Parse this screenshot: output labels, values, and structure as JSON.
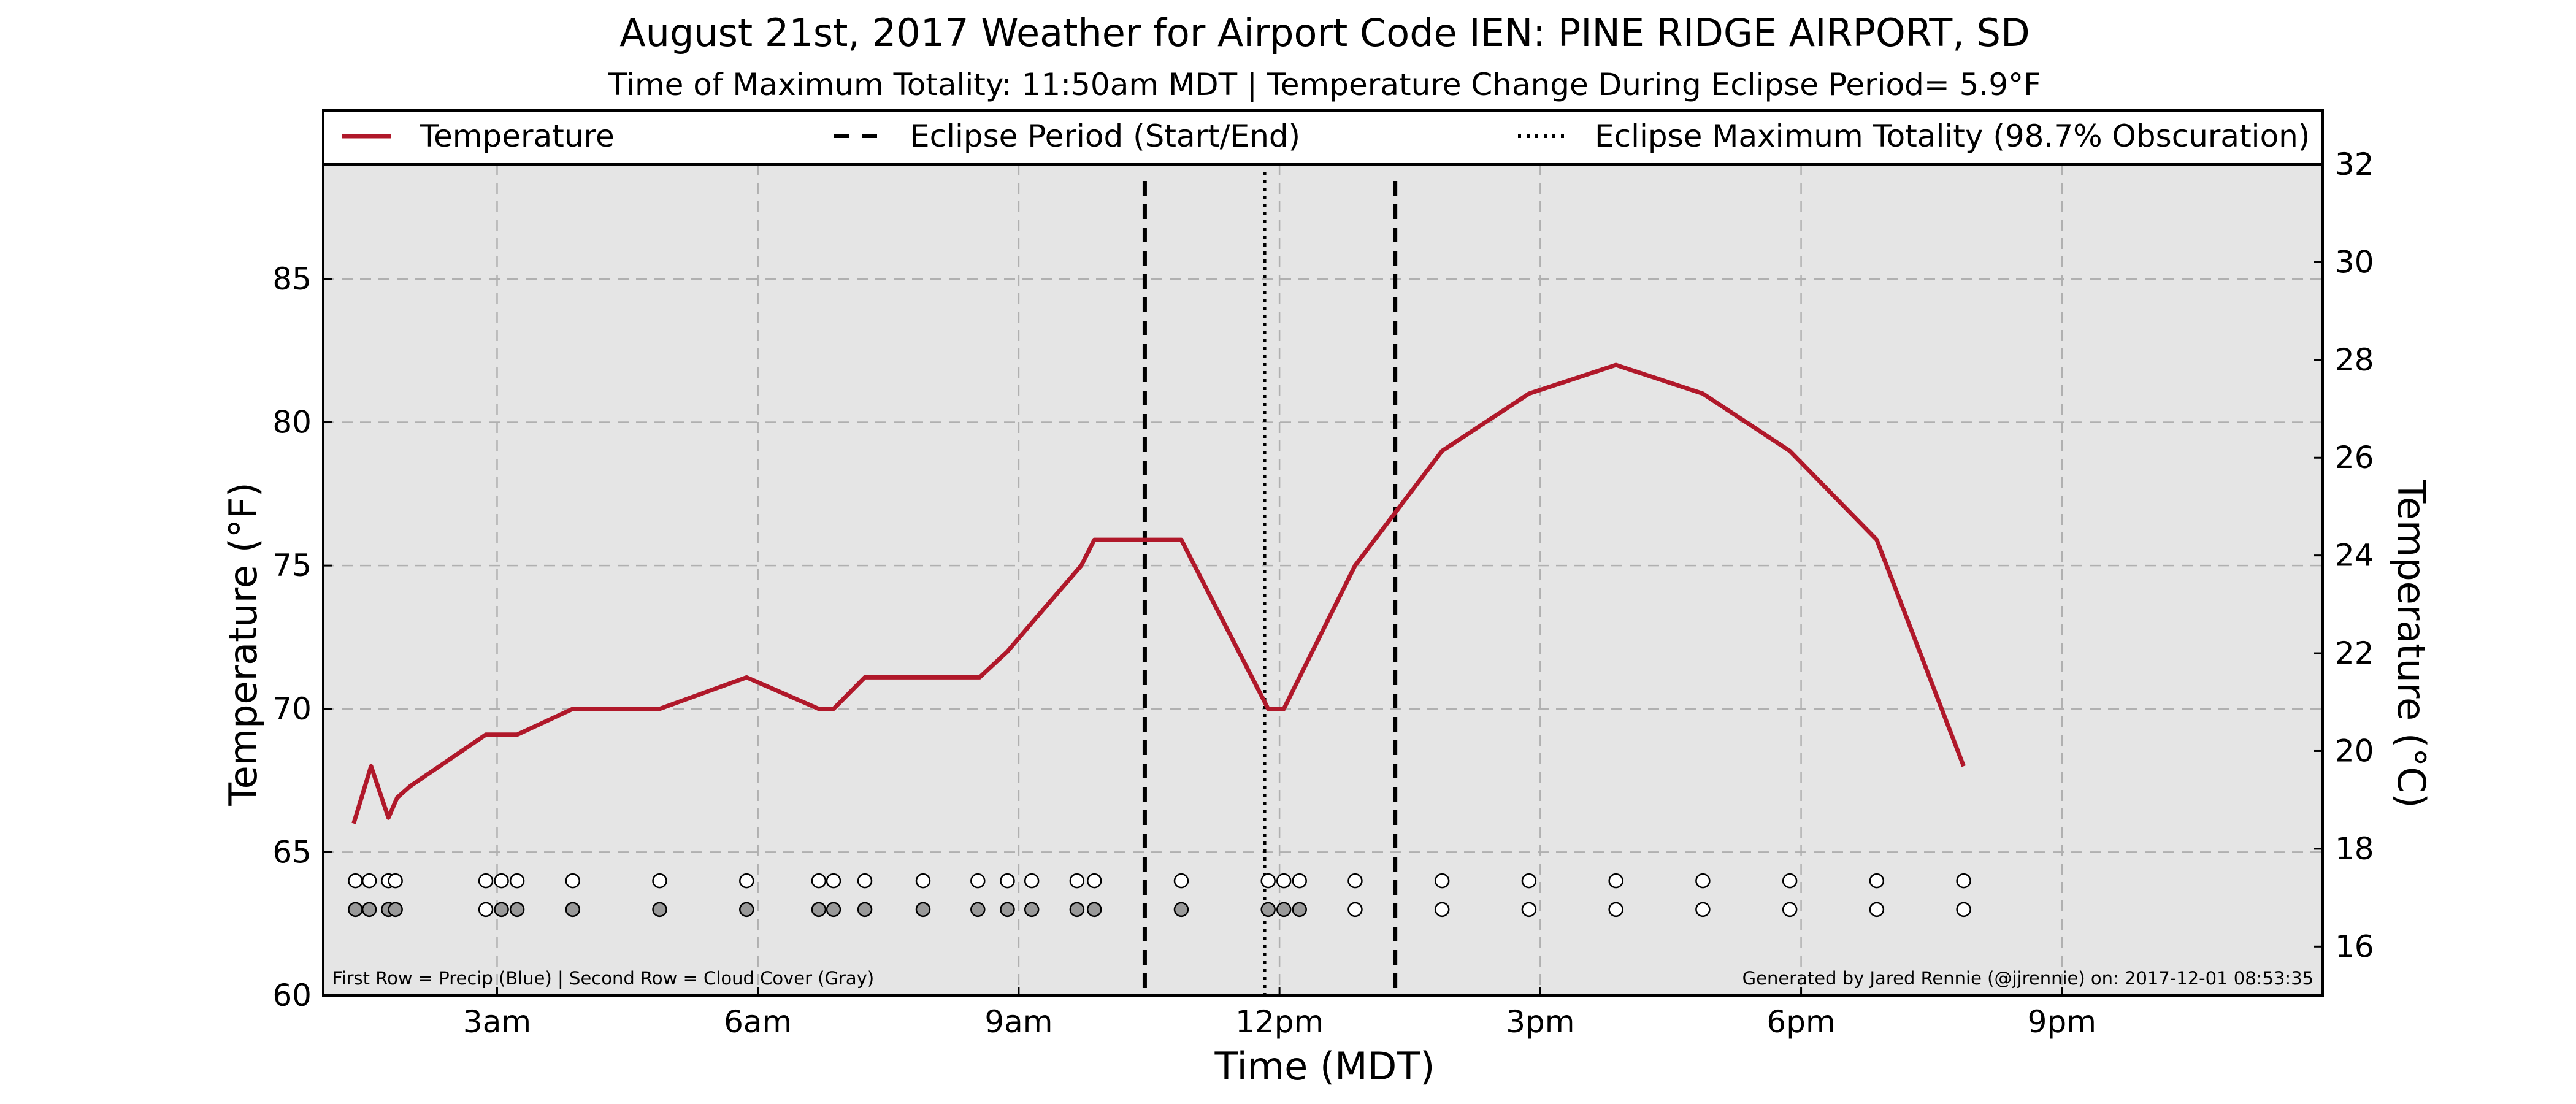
{
  "chart_data": {
    "type": "line",
    "title": "August 21st, 2017 Weather for Airport Code IEN: PINE RIDGE AIRPORT, SD",
    "subtitle": "Time of Maximum Totality: 11:50am MDT | Temperature Change During Eclipse Period= 5.9°F",
    "xlabel": "Time (MDT)",
    "ylabel": "Temperature (°F)",
    "ylabel_right": "Temperature (°C)",
    "xlim": [
      1.0,
      24.0
    ],
    "ylim": [
      60,
      89
    ],
    "ylim_right": [
      15.0,
      32.0
    ],
    "x_ticks": [
      3,
      6,
      9,
      12,
      15,
      18,
      21
    ],
    "x_tick_labels": [
      "3am",
      "6am",
      "9am",
      "12pm",
      "3pm",
      "6pm",
      "9pm"
    ],
    "y_ticks": [
      60,
      65,
      70,
      75,
      80,
      85
    ],
    "y_ticks_right": [
      16,
      18,
      20,
      22,
      24,
      26,
      28,
      30,
      32
    ],
    "grid": true,
    "legend_position": "top",
    "legend": [
      {
        "label": "Temperature",
        "style": "solid"
      },
      {
        "label": "Eclipse Period (Start/End)",
        "style": "dashed"
      },
      {
        "label": "Eclipse Maximum Totality (98.7% Obscuration)",
        "style": "dotted"
      }
    ],
    "series": [
      {
        "name": "Temperature",
        "color": "#b0182a",
        "points": [
          [
            1.35,
            66.0
          ],
          [
            1.55,
            68.0
          ],
          [
            1.75,
            66.2
          ],
          [
            1.85,
            66.9
          ],
          [
            2.0,
            67.3
          ],
          [
            2.87,
            69.1
          ],
          [
            3.23,
            69.1
          ],
          [
            3.87,
            70.0
          ],
          [
            4.87,
            70.0
          ],
          [
            5.87,
            71.1
          ],
          [
            6.7,
            70.0
          ],
          [
            6.87,
            70.0
          ],
          [
            7.23,
            71.1
          ],
          [
            8.55,
            71.1
          ],
          [
            8.87,
            72.0
          ],
          [
            9.15,
            73.0
          ],
          [
            9.72,
            75.0
          ],
          [
            9.87,
            75.9
          ],
          [
            10.87,
            75.9
          ],
          [
            11.87,
            70.0
          ],
          [
            12.05,
            70.0
          ],
          [
            12.23,
            71.1
          ],
          [
            12.87,
            75.0
          ],
          [
            13.87,
            79.0
          ],
          [
            14.87,
            81.0
          ],
          [
            15.87,
            82.0
          ],
          [
            16.87,
            81.0
          ],
          [
            17.87,
            79.0
          ],
          [
            18.87,
            75.9
          ],
          [
            19.87,
            68.0
          ]
        ]
      }
    ],
    "eclipse_start": 10.45,
    "eclipse_end": 13.33,
    "max_totality": 11.83,
    "precip_row": {
      "y": 64,
      "color": "#ffffff",
      "x": [
        1.37,
        1.53,
        1.75,
        1.83,
        2.87,
        3.05,
        3.23,
        3.87,
        4.87,
        5.87,
        6.7,
        6.87,
        7.23,
        7.9,
        8.53,
        8.87,
        9.15,
        9.67,
        9.87,
        10.87,
        11.87,
        12.05,
        12.23,
        12.87,
        13.87,
        14.87,
        15.87,
        16.87,
        17.87,
        18.87,
        19.87
      ]
    },
    "cloud_row": {
      "y": 63,
      "points": [
        {
          "x": 1.37,
          "color": "#999999"
        },
        {
          "x": 1.53,
          "color": "#999999"
        },
        {
          "x": 1.75,
          "color": "#999999"
        },
        {
          "x": 1.83,
          "color": "#999999"
        },
        {
          "x": 2.87,
          "color": "#ffffff"
        },
        {
          "x": 3.05,
          "color": "#999999"
        },
        {
          "x": 3.23,
          "color": "#999999"
        },
        {
          "x": 3.87,
          "color": "#999999"
        },
        {
          "x": 4.87,
          "color": "#999999"
        },
        {
          "x": 5.87,
          "color": "#999999"
        },
        {
          "x": 6.7,
          "color": "#999999"
        },
        {
          "x": 6.87,
          "color": "#999999"
        },
        {
          "x": 7.23,
          "color": "#999999"
        },
        {
          "x": 7.9,
          "color": "#999999"
        },
        {
          "x": 8.53,
          "color": "#999999"
        },
        {
          "x": 8.87,
          "color": "#999999"
        },
        {
          "x": 9.15,
          "color": "#999999"
        },
        {
          "x": 9.67,
          "color": "#999999"
        },
        {
          "x": 9.87,
          "color": "#999999"
        },
        {
          "x": 10.87,
          "color": "#999999"
        },
        {
          "x": 11.87,
          "color": "#999999"
        },
        {
          "x": 12.05,
          "color": "#999999"
        },
        {
          "x": 12.23,
          "color": "#999999"
        },
        {
          "x": 12.87,
          "color": "#ffffff"
        },
        {
          "x": 13.87,
          "color": "#ffffff"
        },
        {
          "x": 14.87,
          "color": "#ffffff"
        },
        {
          "x": 15.87,
          "color": "#ffffff"
        },
        {
          "x": 16.87,
          "color": "#ffffff"
        },
        {
          "x": 17.87,
          "color": "#ffffff"
        },
        {
          "x": 18.87,
          "color": "#ffffff"
        },
        {
          "x": 19.87,
          "color": "#ffffff"
        }
      ]
    },
    "footnote_left": "First Row = Precip (Blue) | Second Row = Cloud Cover (Gray)",
    "footnote_right": "Generated by Jared Rennie (@jjrennie) on: 2017-12-01 08:53:35",
    "colors": {
      "plot_background": "#e5e5e5",
      "grid": "#b0b0b0",
      "line": "#b0182a"
    }
  }
}
